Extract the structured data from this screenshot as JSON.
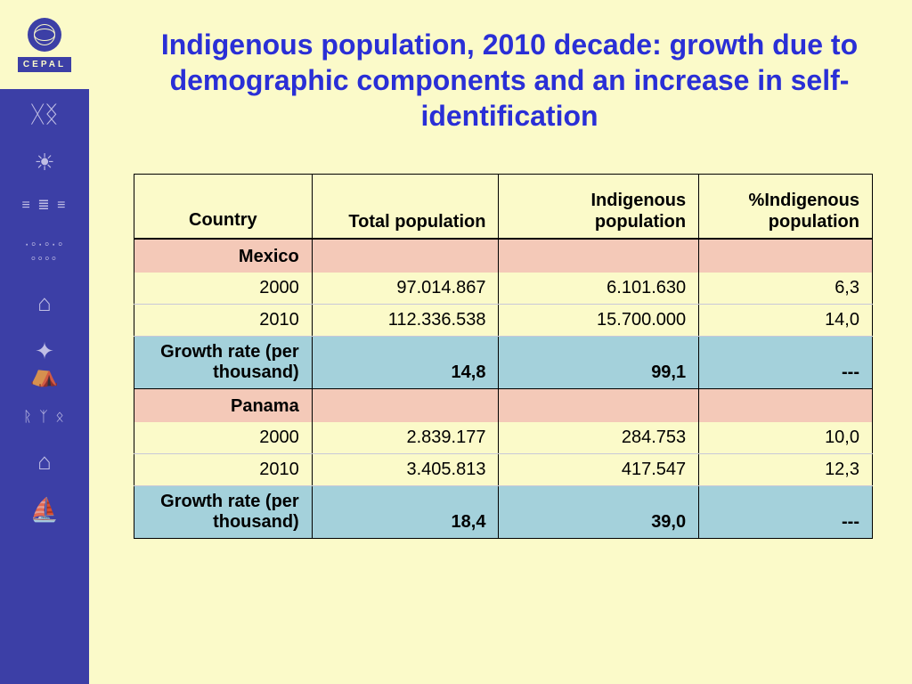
{
  "logo": {
    "org": "CEPAL"
  },
  "title": "Indigenous population, 2010 decade: growth due to demographic components and an increase in self-identification",
  "table": {
    "columns": [
      "Country",
      "Total population",
      "Indigenous population",
      "%Indigenous population"
    ],
    "col_align": [
      "center",
      "right",
      "right",
      "right"
    ],
    "header_row_bg": "#f4c9b8",
    "data_row_bg": "#fbfac9",
    "growth_row_bg": "#a4d1db",
    "border_color": "#000000",
    "font_size": 20,
    "sections": [
      {
        "country": "Mexico",
        "rows": [
          {
            "label": "2000",
            "total": "97.014.867",
            "indigenous": "6.101.630",
            "pct": "6,3"
          },
          {
            "label": "2010",
            "total": "112.336.538",
            "indigenous": "15.700.000",
            "pct": "14,0"
          }
        ],
        "growth": {
          "label": "Growth rate (per thousand)",
          "total": "14,8",
          "indigenous": "99,1",
          "pct": "---"
        }
      },
      {
        "country": "Panama",
        "rows": [
          {
            "label": "2000",
            "total": "2.839.177",
            "indigenous": "284.753",
            "pct": "10,0"
          },
          {
            "label": "2010",
            "total": "3.405.813",
            "indigenous": "417.547",
            "pct": "12,3"
          }
        ],
        "growth": {
          "label": "Growth rate (per thousand)",
          "total": "18,4",
          "indigenous": "39,0",
          "pct": "---"
        }
      }
    ]
  },
  "colors": {
    "page_bg": "#fbfac9",
    "sidebar_bg": "#3c3fa6",
    "title_color": "#2a2fd6"
  }
}
